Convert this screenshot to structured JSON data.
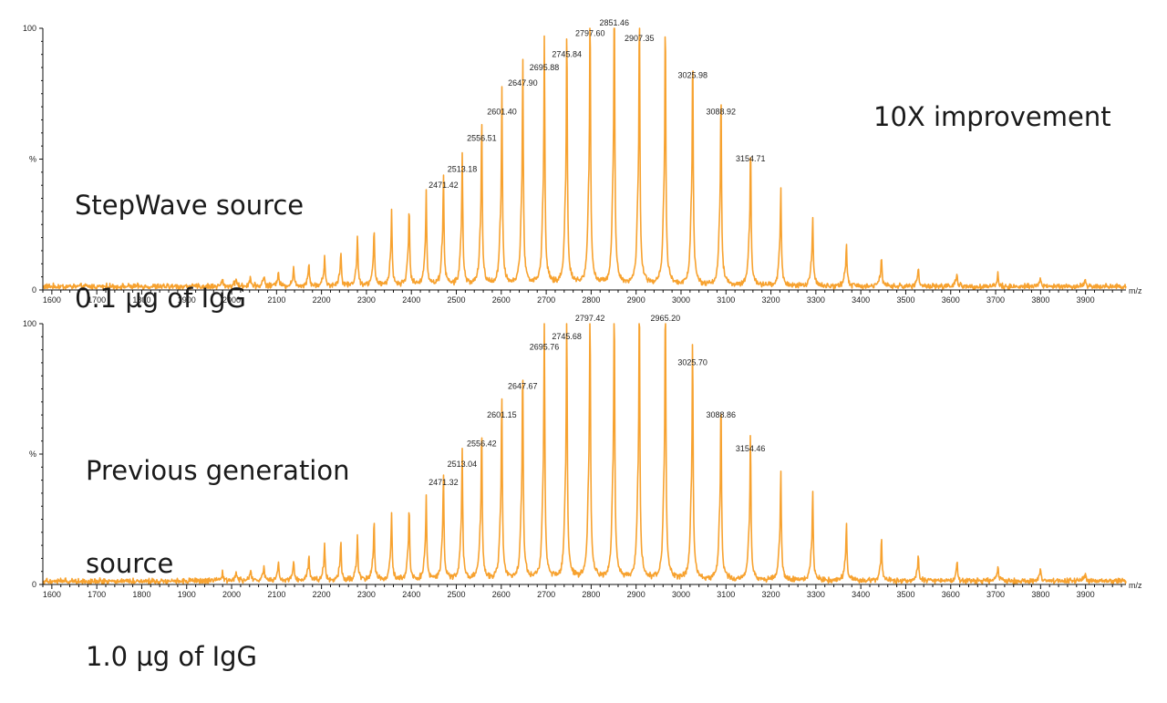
{
  "improvement_label": "10X improvement",
  "colors": {
    "trace": "#F7A22F",
    "axis": "#111111"
  },
  "chart_data": [
    {
      "type": "line",
      "title": "",
      "annotation": [
        "StepWave source",
        "0.1 µg of IgG"
      ],
      "xlabel": "m/z",
      "ylabel": "%",
      "xlim": [
        1580,
        3990
      ],
      "ylim": [
        0,
        100
      ],
      "xticks": [
        1600,
        1700,
        1800,
        1900,
        2000,
        2100,
        2200,
        2300,
        2400,
        2500,
        2600,
        2700,
        2800,
        2900,
        3000,
        3100,
        3200,
        3300,
        3400,
        3500,
        3600,
        3700,
        3800,
        3900
      ],
      "yticks": [
        0,
        100
      ],
      "y_tick_labels": [
        "0",
        "%",
        "100"
      ],
      "peaks": [
        {
          "mz": 1980,
          "intensity": 2.5
        },
        {
          "mz": 2010,
          "intensity": 3
        },
        {
          "mz": 2042,
          "intensity": 3.5
        },
        {
          "mz": 2072,
          "intensity": 4
        },
        {
          "mz": 2104,
          "intensity": 5.5
        },
        {
          "mz": 2138,
          "intensity": 6.5
        },
        {
          "mz": 2172,
          "intensity": 8
        },
        {
          "mz": 2207,
          "intensity": 10
        },
        {
          "mz": 2243,
          "intensity": 12
        },
        {
          "mz": 2280,
          "intensity": 17
        },
        {
          "mz": 2317,
          "intensity": 19
        },
        {
          "mz": 2356,
          "intensity": 25
        },
        {
          "mz": 2395,
          "intensity": 27
        },
        {
          "mz": 2433,
          "intensity": 32
        },
        {
          "mz": 2471.42,
          "intensity": 38,
          "label": "2471.42"
        },
        {
          "mz": 2513.18,
          "intensity": 44,
          "label": "2513.18"
        },
        {
          "mz": 2556.51,
          "intensity": 56,
          "label": "2556.51"
        },
        {
          "mz": 2601.4,
          "intensity": 66,
          "label": "2601.40"
        },
        {
          "mz": 2647.9,
          "intensity": 77,
          "label": "2647.90"
        },
        {
          "mz": 2695.88,
          "intensity": 83,
          "label": "2695.88"
        },
        {
          "mz": 2745.84,
          "intensity": 88,
          "label": "2745.84"
        },
        {
          "mz": 2797.6,
          "intensity": 96,
          "label": "2797.60"
        },
        {
          "mz": 2851.46,
          "intensity": 100,
          "label": "2851.46"
        },
        {
          "mz": 2907.35,
          "intensity": 94,
          "label": "2907.35"
        },
        {
          "mz": 2965,
          "intensity": 91
        },
        {
          "mz": 3025.98,
          "intensity": 80,
          "label": "3025.98"
        },
        {
          "mz": 3088.92,
          "intensity": 66,
          "label": "3088.92"
        },
        {
          "mz": 3154.71,
          "intensity": 48,
          "label": "3154.71"
        },
        {
          "mz": 3222,
          "intensity": 33
        },
        {
          "mz": 3293,
          "intensity": 23
        },
        {
          "mz": 3368,
          "intensity": 15
        },
        {
          "mz": 3446,
          "intensity": 10
        },
        {
          "mz": 3528,
          "intensity": 7
        },
        {
          "mz": 3614,
          "intensity": 5
        },
        {
          "mz": 3705,
          "intensity": 4
        },
        {
          "mz": 3800,
          "intensity": 3
        },
        {
          "mz": 3900,
          "intensity": 2
        }
      ]
    },
    {
      "type": "line",
      "title": "",
      "annotation": [
        "Previous generation",
        "source",
        "1.0 µg of IgG"
      ],
      "xlabel": "m/z",
      "ylabel": "%",
      "xlim": [
        1580,
        3990
      ],
      "ylim": [
        0,
        100
      ],
      "xticks": [
        1600,
        1700,
        1800,
        1900,
        2000,
        2100,
        2200,
        2300,
        2400,
        2500,
        2600,
        2700,
        2800,
        2900,
        3000,
        3100,
        3200,
        3300,
        3400,
        3500,
        3600,
        3700,
        3800,
        3900
      ],
      "yticks": [
        0,
        100
      ],
      "y_tick_labels": [
        "0",
        "%",
        "100"
      ],
      "peaks": [
        {
          "mz": 1980,
          "intensity": 3
        },
        {
          "mz": 2010,
          "intensity": 3.5
        },
        {
          "mz": 2042,
          "intensity": 4
        },
        {
          "mz": 2072,
          "intensity": 5
        },
        {
          "mz": 2104,
          "intensity": 6
        },
        {
          "mz": 2138,
          "intensity": 7
        },
        {
          "mz": 2172,
          "intensity": 9
        },
        {
          "mz": 2207,
          "intensity": 12
        },
        {
          "mz": 2243,
          "intensity": 13
        },
        {
          "mz": 2280,
          "intensity": 15
        },
        {
          "mz": 2317,
          "intensity": 20
        },
        {
          "mz": 2356,
          "intensity": 23
        },
        {
          "mz": 2395,
          "intensity": 25
        },
        {
          "mz": 2433,
          "intensity": 28
        },
        {
          "mz": 2471.32,
          "intensity": 37,
          "label": "2471.32"
        },
        {
          "mz": 2513.04,
          "intensity": 44,
          "label": "2513.04"
        },
        {
          "mz": 2556.42,
          "intensity": 52,
          "label": "2556.42"
        },
        {
          "mz": 2601.15,
          "intensity": 63,
          "label": "2601.15"
        },
        {
          "mz": 2647.67,
          "intensity": 74,
          "label": "2647.67"
        },
        {
          "mz": 2695.76,
          "intensity": 89,
          "label": "2695.76"
        },
        {
          "mz": 2745.68,
          "intensity": 93,
          "label": "2745.68"
        },
        {
          "mz": 2797.42,
          "intensity": 100,
          "label": "2797.42"
        },
        {
          "mz": 2851.3,
          "intensity": 99
        },
        {
          "mz": 2907.2,
          "intensity": 98
        },
        {
          "mz": 2965.2,
          "intensity": 100,
          "label": "2965.20"
        },
        {
          "mz": 3025.7,
          "intensity": 83,
          "label": "3025.70"
        },
        {
          "mz": 3088.86,
          "intensity": 63,
          "label": "3088.86"
        },
        {
          "mz": 3154.46,
          "intensity": 50,
          "label": "3154.46"
        },
        {
          "mz": 3222,
          "intensity": 38
        },
        {
          "mz": 3293,
          "intensity": 30
        },
        {
          "mz": 3368,
          "intensity": 20
        },
        {
          "mz": 3446,
          "intensity": 14
        },
        {
          "mz": 3528,
          "intensity": 9
        },
        {
          "mz": 3614,
          "intensity": 7
        },
        {
          "mz": 3705,
          "intensity": 5
        },
        {
          "mz": 3800,
          "intensity": 4
        },
        {
          "mz": 3900,
          "intensity": 3
        }
      ]
    }
  ]
}
